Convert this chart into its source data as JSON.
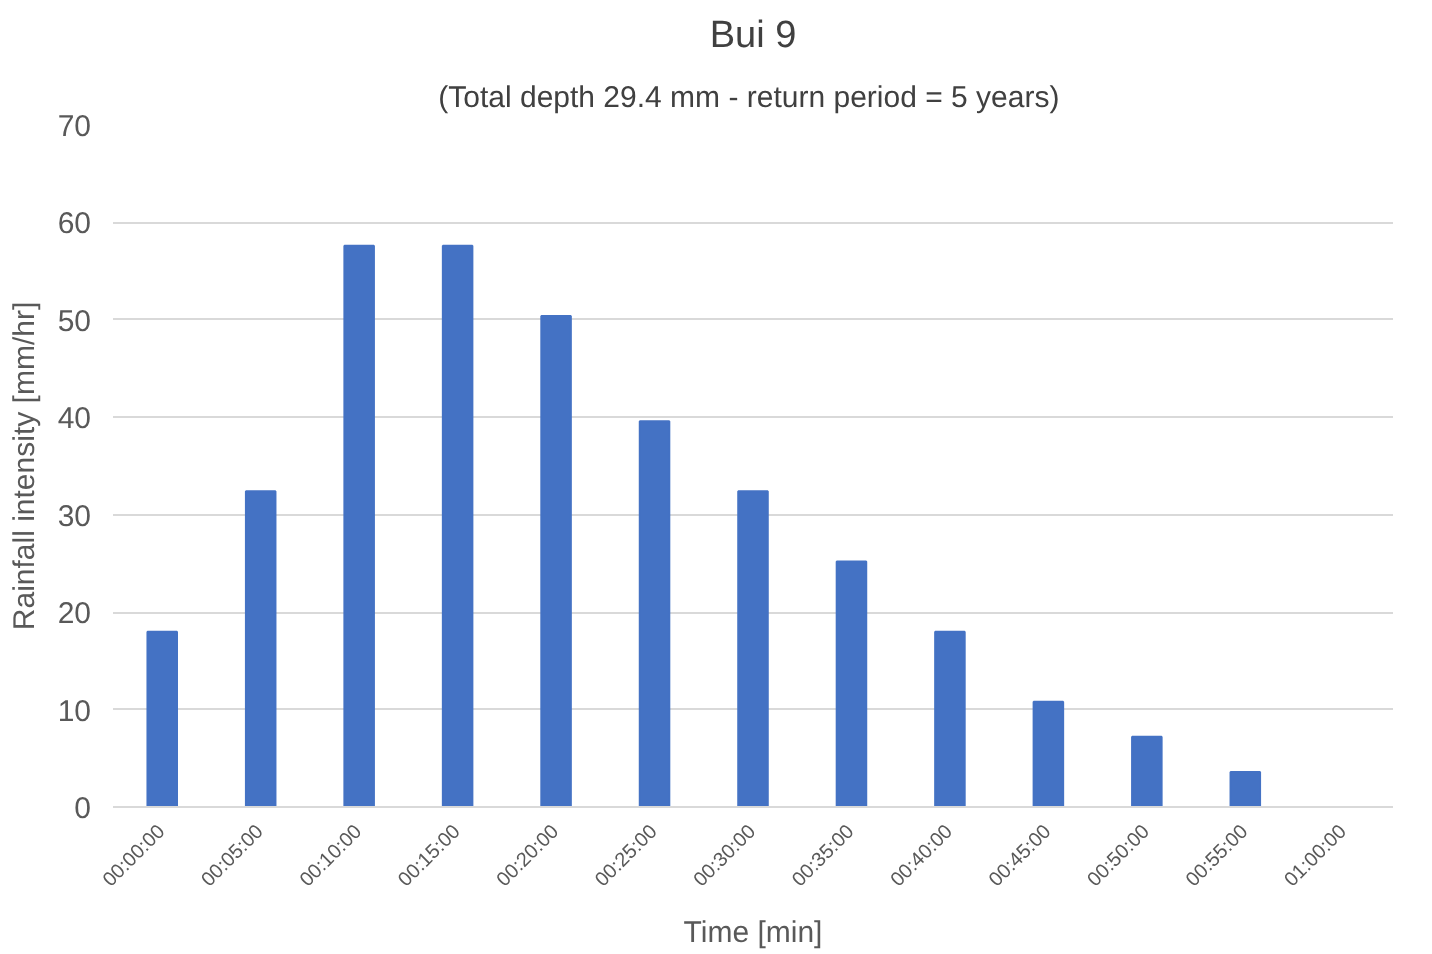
{
  "chart_data": {
    "type": "bar",
    "title": "Bui 9",
    "subtitle": "(Total depth  29.4 mm - return period = 5 years)",
    "xlabel": "Time [min]",
    "ylabel": "Rainfall intensity [mm/hr]",
    "categories": [
      "00:00:00",
      "00:05:00",
      "00:10:00",
      "00:15:00",
      "00:20:00",
      "00:25:00",
      "00:30:00",
      "00:35:00",
      "00:40:00",
      "00:45:00",
      "00:50:00",
      "00:55:00",
      "01:00:00"
    ],
    "values": [
      18.0,
      32.4,
      57.6,
      57.6,
      50.4,
      39.6,
      32.4,
      25.2,
      18.0,
      10.8,
      7.2,
      3.6,
      0
    ],
    "color": "#4472c4",
    "ylim": [
      0,
      70
    ],
    "yticks": [
      0,
      10,
      20,
      30,
      40,
      50,
      60,
      70
    ],
    "grid": "y"
  }
}
